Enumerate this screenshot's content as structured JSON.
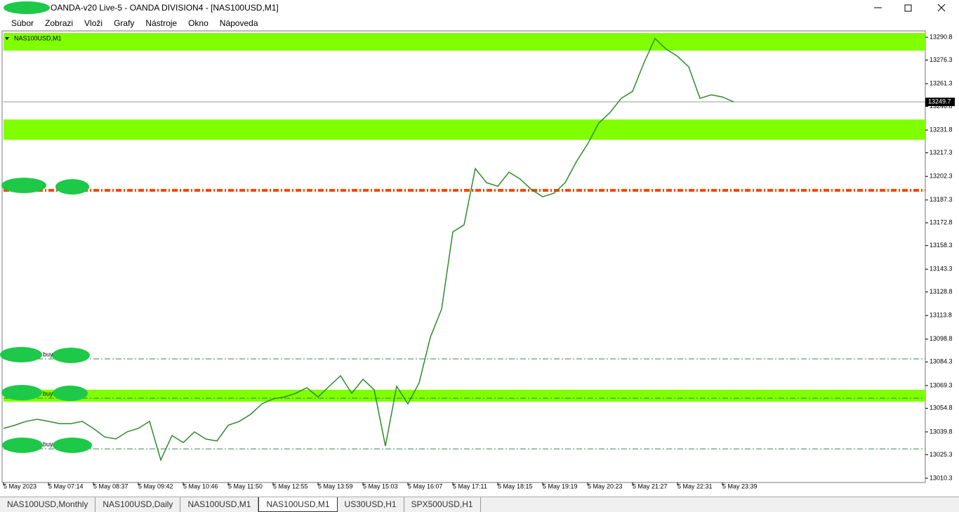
{
  "window": {
    "title": "OANDA-v20 Live-5 - OANDA DIVISION4 - [NAS100USD,M1]"
  },
  "menu": [
    "Súbor",
    "Zobrazi",
    "Vloži",
    "Grafy",
    "Nástroje",
    "Okno",
    "Nápoveda"
  ],
  "tabs": [
    "NAS100USD,Monthly",
    "NAS100USD,Daily",
    "NAS100USD,M1",
    "NAS100USD,M1",
    "US30USD,H1",
    "SPX500USD,H1"
  ],
  "chart_data": {
    "type": "line",
    "title": "NAS100USD,M1",
    "categories": [
      "5 May 2023",
      null,
      null,
      null,
      "5 May 07:14",
      null,
      null,
      null,
      "5 May 08:37",
      null,
      null,
      null,
      "5 May 09:42",
      null,
      null,
      null,
      "5 May 10:46",
      null,
      null,
      null,
      "5 May 11:50",
      null,
      null,
      null,
      "5 May 12:55",
      null,
      null,
      null,
      "5 May 13:59",
      null,
      null,
      null,
      "5 May 15:03",
      null,
      null,
      null,
      "5 May 16:07",
      null,
      null,
      null,
      "5 May 17:11",
      null,
      null,
      null,
      "5 May 18:15",
      null,
      null,
      null,
      "5 May 19:19",
      null,
      null,
      null,
      "5 May 20:23",
      null,
      null,
      null,
      "5 May 21:27",
      null,
      null,
      null,
      "5 May 22:31",
      null,
      null,
      null,
      "5 May 23:39",
      null
    ],
    "series": [
      {
        "name": "NAS100USD",
        "color": "#2e8b2e",
        "values": [
          13042,
          13044,
          13046.5,
          13047.8,
          13046.5,
          13045,
          13045,
          13046.5,
          13042,
          13036.6,
          13035.3,
          13039.8,
          13042,
          13046.5,
          13021.9,
          13037.5,
          13033,
          13039.8,
          13035.3,
          13034,
          13044,
          13046.5,
          13051,
          13057.6,
          13060.8,
          13062,
          13064.3,
          13067.9,
          13062,
          13068.8,
          13075.5,
          13064.3,
          13073.3,
          13066.6,
          13030.8,
          13068.8,
          13057.6,
          13071,
          13100,
          13117.9,
          13167,
          13171.5,
          13207.3,
          13198.3,
          13196,
          13205,
          13200.6,
          13193.9,
          13189.4,
          13191.6,
          13198.3,
          13211.7,
          13222.9,
          13236.3,
          13243,
          13252,
          13256.4,
          13274.3,
          13290,
          13283.2,
          13278.7,
          13272,
          13252,
          13254.2,
          13252.8,
          13249.7
        ]
      }
    ],
    "ylim": [
      13007.6,
      13294.4
    ],
    "yticks": [
      13290.8,
      13276.3,
      13261.3,
      13246.8,
      13231.8,
      13217.3,
      13202.3,
      13187.3,
      13172.8,
      13158.3,
      13143.3,
      13128.8,
      13113.8,
      13098.8,
      13084.3,
      13069.3,
      13054.8,
      13039.8,
      13025.3,
      13010.3
    ],
    "zones": [
      {
        "from": 13282.3,
        "to": 13293.5,
        "color": "#7fff00"
      },
      {
        "from": 13225.6,
        "to": 13238.5,
        "color": "#7fff00"
      },
      {
        "from": 13059,
        "to": 13066.6,
        "color": "#7fff00"
      }
    ],
    "levels": [
      {
        "value": 13193.9,
        "color": "#ff4500"
      },
      {
        "value": 13193,
        "color": "#ff4500"
      },
      {
        "value": 13086.2,
        "color": "#2e8b57",
        "label": "buy"
      },
      {
        "value": 13061.2,
        "color": "#2e8b57",
        "label": "buy"
      },
      {
        "value": 13029,
        "color": "#2e8b57",
        "label": "buy"
      }
    ],
    "last_price": 13249.7
  }
}
